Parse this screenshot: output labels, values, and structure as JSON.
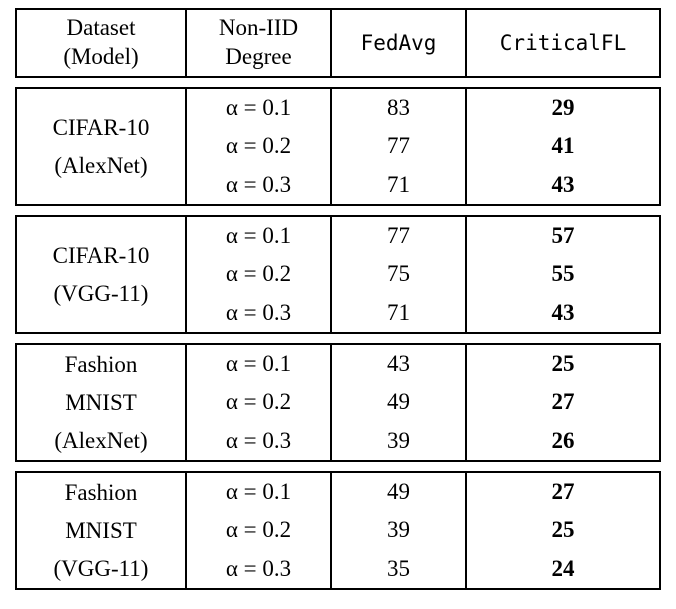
{
  "colors": {
    "background": "#ffffff",
    "text": "#000000",
    "border": "#000000"
  },
  "table": {
    "header": {
      "col1": [
        "Dataset",
        "(Model)"
      ],
      "col2": [
        "Non-IID",
        "Degree"
      ],
      "col3": "FedAvg",
      "col4": "CriticalFL"
    },
    "groups": [
      {
        "dataset": [
          "CIFAR-10",
          "(AlexNet)"
        ],
        "rows": [
          {
            "noniid": "α = 0.1",
            "fedavg": "83",
            "criticalfl": "29"
          },
          {
            "noniid": "α = 0.2",
            "fedavg": "77",
            "criticalfl": "41"
          },
          {
            "noniid": "α = 0.3",
            "fedavg": "71",
            "criticalfl": "43"
          }
        ]
      },
      {
        "dataset": [
          "CIFAR-10",
          "(VGG-11)"
        ],
        "rows": [
          {
            "noniid": "α = 0.1",
            "fedavg": "77",
            "criticalfl": "57"
          },
          {
            "noniid": "α = 0.2",
            "fedavg": "75",
            "criticalfl": "55"
          },
          {
            "noniid": "α = 0.3",
            "fedavg": "71",
            "criticalfl": "43"
          }
        ]
      },
      {
        "dataset": [
          "Fashion",
          "MNIST",
          "(AlexNet)"
        ],
        "rows": [
          {
            "noniid": "α = 0.1",
            "fedavg": "43",
            "criticalfl": "25"
          },
          {
            "noniid": "α = 0.2",
            "fedavg": "49",
            "criticalfl": "27"
          },
          {
            "noniid": "α = 0.3",
            "fedavg": "39",
            "criticalfl": "26"
          }
        ]
      },
      {
        "dataset": [
          "Fashion",
          "MNIST",
          "(VGG-11)"
        ],
        "rows": [
          {
            "noniid": "α = 0.1",
            "fedavg": "49",
            "criticalfl": "27"
          },
          {
            "noniid": "α = 0.2",
            "fedavg": "39",
            "criticalfl": "25"
          },
          {
            "noniid": "α = 0.3",
            "fedavg": "35",
            "criticalfl": "24"
          }
        ]
      }
    ]
  },
  "chart_data": {
    "type": "table",
    "columns": [
      "Dataset (Model)",
      "Non-IID Degree",
      "FedAvg",
      "CriticalFL"
    ],
    "rows": [
      [
        "CIFAR-10 (AlexNet)",
        "α = 0.1",
        83,
        29
      ],
      [
        "CIFAR-10 (AlexNet)",
        "α = 0.2",
        77,
        41
      ],
      [
        "CIFAR-10 (AlexNet)",
        "α = 0.3",
        71,
        43
      ],
      [
        "CIFAR-10 (VGG-11)",
        "α = 0.1",
        77,
        57
      ],
      [
        "CIFAR-10 (VGG-11)",
        "α = 0.2",
        75,
        55
      ],
      [
        "CIFAR-10 (VGG-11)",
        "α = 0.3",
        71,
        43
      ],
      [
        "Fashion MNIST (AlexNet)",
        "α = 0.1",
        43,
        25
      ],
      [
        "Fashion MNIST (AlexNet)",
        "α = 0.2",
        49,
        27
      ],
      [
        "Fashion MNIST (AlexNet)",
        "α = 0.3",
        39,
        26
      ],
      [
        "Fashion MNIST (VGG-11)",
        "α = 0.1",
        49,
        27
      ],
      [
        "Fashion MNIST (VGG-11)",
        "α = 0.2",
        39,
        25
      ],
      [
        "Fashion MNIST (VGG-11)",
        "α = 0.3",
        35,
        24
      ]
    ]
  }
}
